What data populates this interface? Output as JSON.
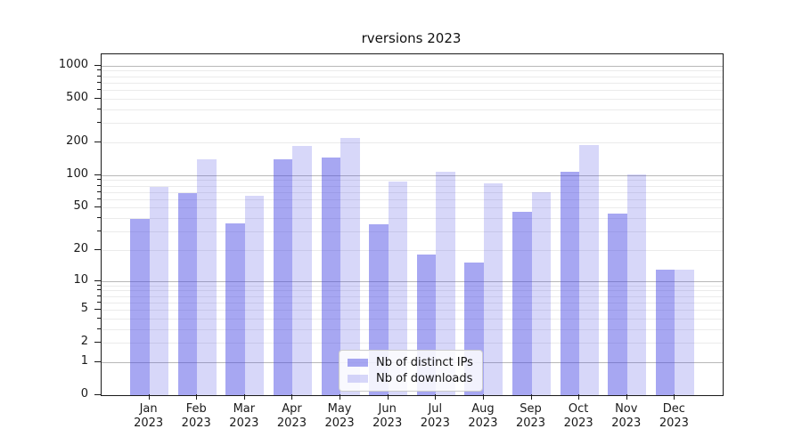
{
  "title": "rversions 2023",
  "legend": {
    "items": [
      {
        "label": "Nb of distinct IPs",
        "color": "rgba(68,68,228,0.47)"
      },
      {
        "label": "Nb of downloads",
        "color": "rgba(68,68,228,0.21)"
      }
    ]
  },
  "chart_data": {
    "type": "bar",
    "title": "rversions 2023",
    "scale": "log1p",
    "categories": [
      "Jan",
      "Feb",
      "Mar",
      "Apr",
      "May",
      "Jun",
      "Jul",
      "Aug",
      "Sep",
      "Oct",
      "Nov",
      "Dec"
    ],
    "year_label": "2023",
    "series": [
      {
        "name": "Nb of distinct IPs",
        "color": "rgba(68,68,228,0.47)",
        "values": [
          39,
          68,
          36,
          140,
          144,
          35,
          18,
          15,
          46,
          107,
          44,
          13
        ]
      },
      {
        "name": "Nb of downloads",
        "color": "rgba(68,68,228,0.21)",
        "values": [
          78,
          140,
          64,
          186,
          218,
          87,
          107,
          84,
          70,
          187,
          101,
          13
        ]
      }
    ],
    "xlabel": "",
    "ylabel": "",
    "yticks": [
      1000,
      500,
      200,
      100,
      50,
      20,
      10,
      5,
      2,
      1,
      0
    ],
    "ylim": [
      0,
      1270
    ],
    "grid": {
      "major_values": [
        1,
        10,
        100,
        1000
      ],
      "minor_decades": [
        1,
        10,
        100
      ],
      "major_color": "#b8b8b8",
      "minor_color": "#ebebeb"
    },
    "legend_position": "lower-center"
  }
}
